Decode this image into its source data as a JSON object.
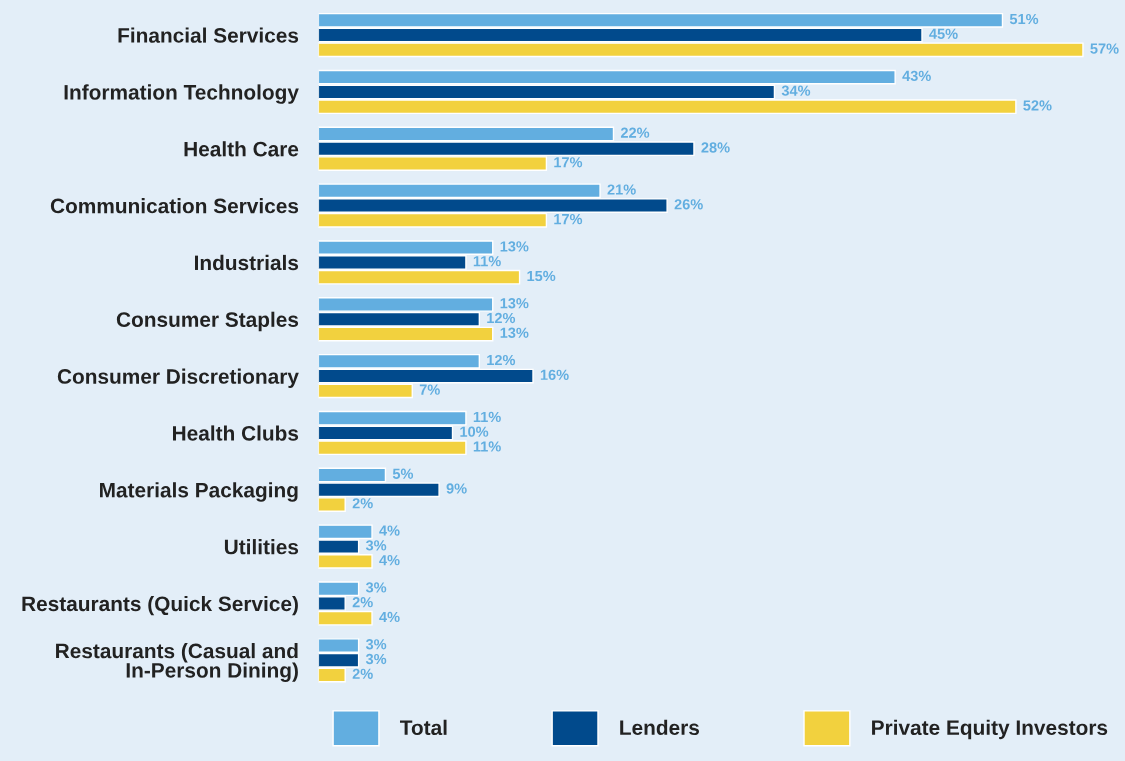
{
  "chart_data": {
    "type": "bar",
    "orientation": "horizontal",
    "categories": [
      "Financial Services",
      "Information Technology",
      "Health Care",
      "Communication Services",
      "Industrials",
      "Consumer Staples",
      "Consumer Discretionary",
      "Health Clubs",
      "Materials Packaging",
      "Utilities",
      "Restaurants (Quick Service)",
      "Restaurants (Casual and\nIn-Person Dining)"
    ],
    "series": [
      {
        "name": "Total",
        "color": "#62aee0",
        "values": [
          51,
          43,
          22,
          21,
          13,
          13,
          12,
          11,
          5,
          4,
          3,
          3
        ],
        "value_labels": [
          "51%",
          "43%",
          "22%",
          "21%",
          "13%",
          "13%",
          "12%",
          "11%",
          "5%",
          "4%",
          "3%",
          "3%"
        ]
      },
      {
        "name": "Lenders",
        "color": "#014a8c",
        "values": [
          45,
          34,
          28,
          26,
          11,
          12,
          16,
          10,
          9,
          3,
          2,
          3
        ],
        "value_labels": [
          "45%",
          "34%",
          "28%",
          "26%",
          "11%",
          "12%",
          "16%",
          "10%",
          "9%",
          "3%",
          "2%",
          "3%"
        ]
      },
      {
        "name": "Private Equity Investors",
        "color": "#f2d13e",
        "values": [
          57,
          52,
          17,
          17,
          15,
          13,
          7,
          11,
          2,
          4,
          4,
          2
        ],
        "value_labels": [
          "57%",
          "52%",
          "17%",
          "17%",
          "15%",
          "13%",
          "7%",
          "11%",
          "2%",
          "4%",
          "4%",
          "2%"
        ]
      }
    ],
    "legend": "bottom",
    "grid": false
  }
}
